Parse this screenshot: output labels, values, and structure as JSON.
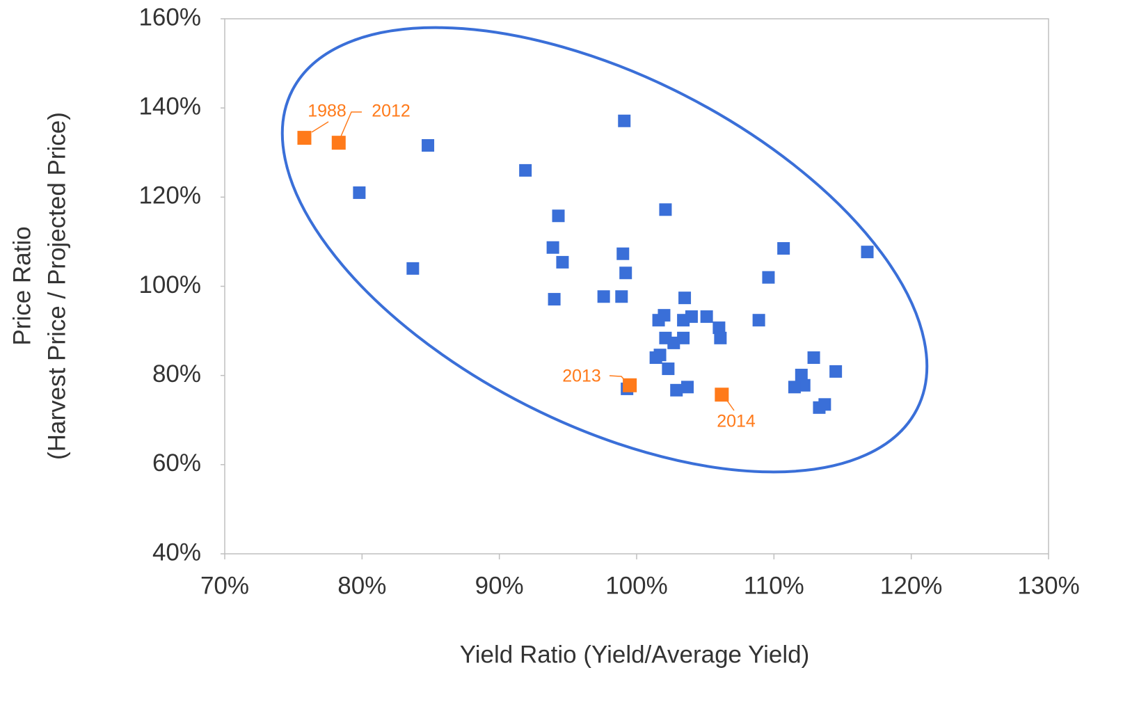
{
  "chart_data": {
    "type": "scatter",
    "xlabel": "Yield Ratio (Yield/Average Yield)",
    "ylabel": [
      "Price Ratio",
      "(Harvest Price  / Projected Price)"
    ],
    "xlim": [
      70,
      130
    ],
    "ylim": [
      40,
      160
    ],
    "xticks": [
      {
        "value": 70,
        "label": "70%"
      },
      {
        "value": 80,
        "label": "80%"
      },
      {
        "value": 90,
        "label": "90%"
      },
      {
        "value": 100,
        "label": "100%"
      },
      {
        "value": 110,
        "label": "110%"
      },
      {
        "value": 120,
        "label": "120%"
      },
      {
        "value": 130,
        "label": "130%"
      }
    ],
    "yticks": [
      {
        "value": 40,
        "label": "40%"
      },
      {
        "value": 60,
        "label": "60%"
      },
      {
        "value": 80,
        "label": "80%"
      },
      {
        "value": 100,
        "label": "100%"
      },
      {
        "value": 120,
        "label": "120%"
      },
      {
        "value": 140,
        "label": "140%"
      },
      {
        "value": 160,
        "label": "160%"
      }
    ],
    "series": [
      {
        "color": "#3a6fd8",
        "x": [
          84.8,
          79.8,
          83.7,
          91.9,
          99.1,
          94.3,
          93.9,
          94.6,
          94.0,
          97.6,
          98.9,
          99.0,
          99.2,
          102.1,
          99.3,
          101.6,
          102.0,
          102.1,
          102.7,
          103.4,
          103.4,
          103.5,
          104.0,
          101.4,
          101.7,
          102.3,
          102.9,
          103.7,
          105.1,
          106.0,
          106.1,
          108.9,
          109.6,
          110.7,
          116.8,
          112.9,
          112.0,
          112.2,
          111.5,
          113.3,
          113.7,
          114.5
        ],
        "values": [
          131.6,
          121.0,
          104.0,
          126.0,
          137.1,
          115.8,
          108.7,
          105.4,
          97.1,
          97.7,
          97.7,
          107.3,
          103.0,
          117.2,
          77.0,
          92.4,
          93.5,
          88.4,
          87.3,
          88.4,
          92.4,
          97.4,
          93.2,
          84.0,
          84.6,
          81.5,
          76.7,
          77.4,
          93.2,
          90.7,
          88.4,
          92.4,
          102.0,
          108.5,
          107.7,
          84.0,
          80.1,
          77.8,
          77.4,
          72.8,
          73.5,
          80.9
        ]
      },
      {
        "color": "#ff7a1a",
        "x": [
          75.8,
          78.3,
          99.5,
          106.2
        ],
        "values": [
          133.3,
          132.2,
          77.8,
          75.7
        ],
        "labels": [
          "1988",
          "2012",
          "2013",
          "2014"
        ]
      }
    ]
  }
}
